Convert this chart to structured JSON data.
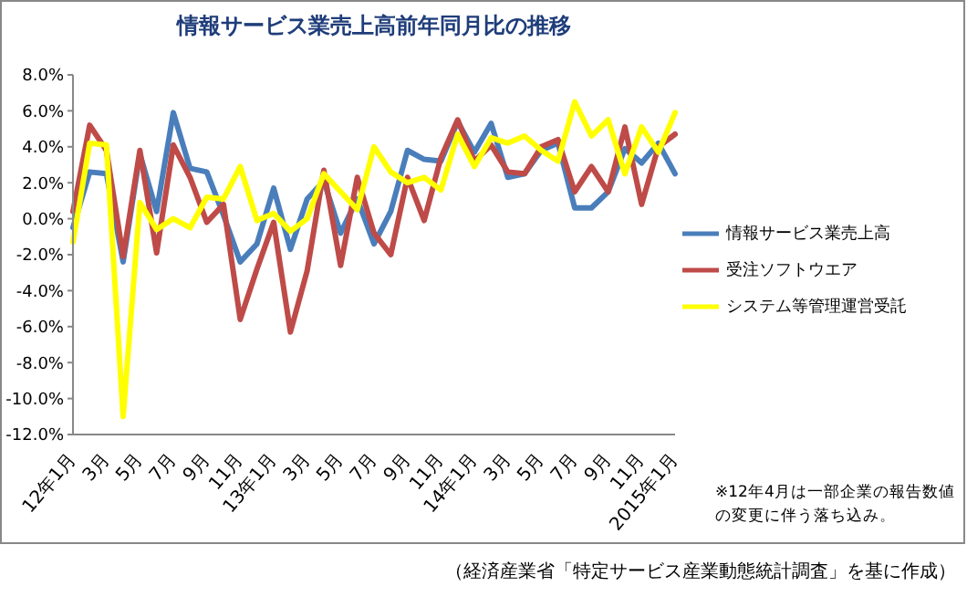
{
  "chart_data": {
    "type": "line",
    "title": "情報サービス業売上高前年同月比の推移",
    "categories": [
      "12年1月",
      null,
      "3月",
      null,
      "5月",
      null,
      "7月",
      null,
      "9月",
      null,
      "11月",
      null,
      "13年1月",
      null,
      "3月",
      null,
      "5月",
      null,
      "7月",
      null,
      "9月",
      null,
      "11月",
      null,
      "14年1月",
      null,
      "3月",
      null,
      "5月",
      null,
      "7月",
      null,
      "9月",
      null,
      "11月",
      null,
      "2015年1月"
    ],
    "series": [
      {
        "name": "情報サービス業売上高",
        "color": "#4a7ebb",
        "values": [
          -0.5,
          2.6,
          2.5,
          -2.4,
          3.6,
          0.4,
          5.9,
          2.8,
          2.6,
          0.2,
          -2.4,
          -1.4,
          1.7,
          -1.7,
          1.1,
          2.1,
          -0.8,
          1.1,
          -1.4,
          0.4,
          3.8,
          3.3,
          3.2,
          5.4,
          3.7,
          5.3,
          2.3,
          2.5,
          3.8,
          4.2,
          0.6,
          0.6,
          1.5,
          3.9,
          3.1,
          4.2,
          2.5
        ]
      },
      {
        "name": "受注ソフトウエア",
        "color": "#be4b48",
        "values": [
          0.4,
          5.2,
          3.8,
          -2.1,
          3.8,
          -1.9,
          4.1,
          2.3,
          -0.2,
          0.8,
          -5.6,
          -2.8,
          -0.2,
          -6.3,
          -2.9,
          2.7,
          -2.6,
          2.3,
          -0.8,
          -2.0,
          2.3,
          -0.1,
          3.4,
          5.5,
          3.2,
          4.1,
          2.6,
          2.5,
          4.0,
          4.4,
          1.5,
          2.9,
          1.5,
          5.1,
          0.8,
          4.0,
          4.7
        ]
      },
      {
        "name": "システム等管理運営受託",
        "color": "#ffff00",
        "values": [
          -1.3,
          4.2,
          4.1,
          -11.0,
          0.9,
          -0.6,
          0.0,
          -0.5,
          1.2,
          1.1,
          2.9,
          -0.1,
          0.3,
          -0.7,
          0.0,
          2.5,
          1.5,
          0.5,
          4.0,
          2.6,
          2.0,
          2.3,
          1.6,
          4.7,
          2.9,
          4.5,
          4.2,
          4.6,
          3.8,
          3.2,
          6.5,
          4.6,
          5.5,
          2.5,
          5.1,
          3.7,
          5.9
        ]
      }
    ],
    "ylim": [
      -12,
      8
    ],
    "yticks": [
      {
        "value": 8,
        "label": "8.0%"
      },
      {
        "value": 6,
        "label": "6.0%"
      },
      {
        "value": 4,
        "label": "4.0%"
      },
      {
        "value": 2,
        "label": "2.0%"
      },
      {
        "value": 0,
        "label": "0.0%"
      },
      {
        "value": -2,
        "label": "-2.0%"
      },
      {
        "value": -4,
        "label": "-4.0%"
      },
      {
        "value": -6,
        "label": "-6.0%"
      },
      {
        "value": -8,
        "label": "-8.0%"
      },
      {
        "value": -10,
        "label": "-10.0%"
      },
      {
        "value": -12,
        "label": "-12.0%"
      }
    ],
    "legend": "right",
    "grid": false,
    "marker": "none",
    "line_style": "solid",
    "annotations": [
      "※12年4月は一部企業の報告数値の変更に伴う落ち込み。",
      "（経済産業省「特定サービス産業動態統計調査」を基に作成）"
    ]
  }
}
